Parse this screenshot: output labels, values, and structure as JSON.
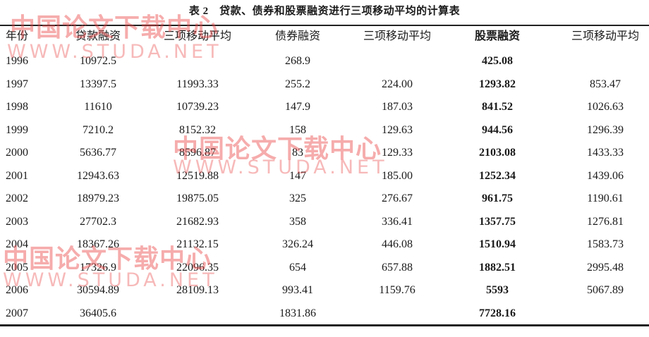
{
  "title": "表 2　贷款、债券和股票融资进行三项移动平均的计算表",
  "headers": [
    "年份",
    "贷款融资",
    "三项移动平均",
    "债券融资",
    "三项移动平均",
    "股票融资",
    "三项移动平均"
  ],
  "rows": [
    [
      "1996",
      "10972.5",
      "",
      "268.9",
      "",
      "425.08",
      ""
    ],
    [
      "1997",
      "13397.5",
      "11993.33",
      "255.2",
      "224.00",
      "1293.82",
      "853.47"
    ],
    [
      "1998",
      "11610",
      "10739.23",
      "147.9",
      "187.03",
      "841.52",
      "1026.63"
    ],
    [
      "1999",
      "7210.2",
      "8152.32",
      "158",
      "129.63",
      "944.56",
      "1296.39"
    ],
    [
      "2000",
      "5636.77",
      "8596.87",
      "83",
      "129.33",
      "2103.08",
      "1433.33"
    ],
    [
      "2001",
      "12943.63",
      "12519.88",
      "147",
      "185.00",
      "1252.34",
      "1439.06"
    ],
    [
      "2002",
      "18979.23",
      "19875.05",
      "325",
      "276.67",
      "961.75",
      "1190.61"
    ],
    [
      "2003",
      "27702.3",
      "21682.93",
      "358",
      "336.41",
      "1357.75",
      "1276.81"
    ],
    [
      "2004",
      "18367.26",
      "21132.15",
      "326.24",
      "446.08",
      "1510.94",
      "1583.73"
    ],
    [
      "2005",
      "17326.9",
      "22096.35",
      "654",
      "657.88",
      "1882.51",
      "2995.48"
    ],
    [
      "2006",
      "30594.89",
      "28109.13",
      "993.41",
      "1159.76",
      "5593",
      "5067.89"
    ],
    [
      "2007",
      "36405.6",
      "",
      "1831.86",
      "",
      "7728.16",
      ""
    ]
  ],
  "watermark": {
    "cn": "中国论文下载中心",
    "en": "WWW.STUDA.NET",
    "color": "#eb4646"
  }
}
